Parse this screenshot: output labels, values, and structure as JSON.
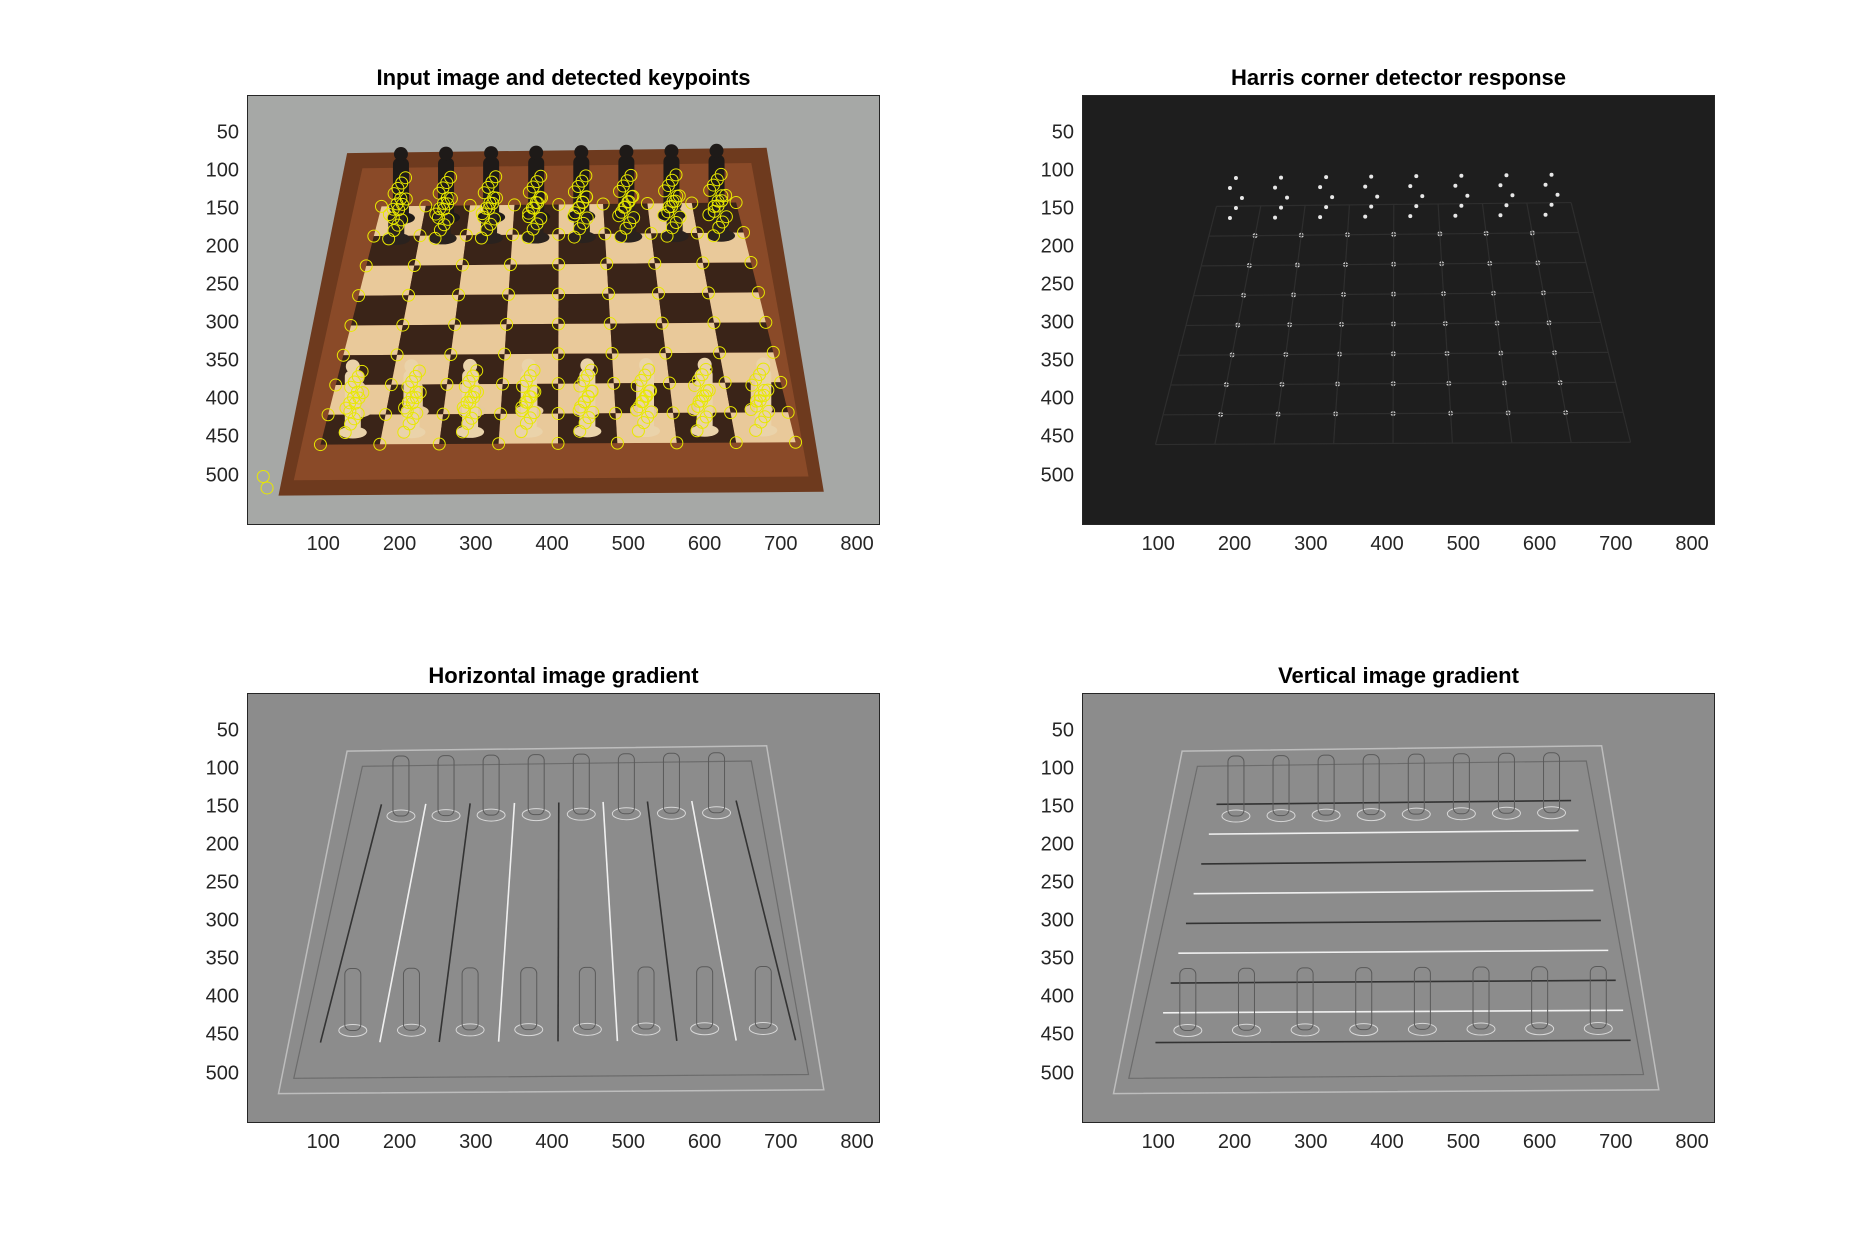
{
  "panels": [
    {
      "title": "Input image and detected keypoints",
      "kind": "photo"
    },
    {
      "title": "Harris corner detector response",
      "kind": "harris"
    },
    {
      "title": "Horizontal image gradient",
      "kind": "gradx"
    },
    {
      "title": "Vertical image gradient",
      "kind": "grady"
    }
  ],
  "x_ticks": [
    "100",
    "200",
    "300",
    "400",
    "500",
    "600",
    "700",
    "800"
  ],
  "y_ticks": [
    "50",
    "100",
    "150",
    "200",
    "250",
    "300",
    "350",
    "400",
    "450",
    "500"
  ],
  "colors": {
    "keypoint": "#e8e800",
    "harris_bg": "#1e1e1e",
    "gradient_bg": "#8c8c8c",
    "board_wood": "#8a4a28",
    "square_light": "#e9c99a",
    "square_dark": "#3a2418",
    "cloth": "#a6a8a6"
  }
}
